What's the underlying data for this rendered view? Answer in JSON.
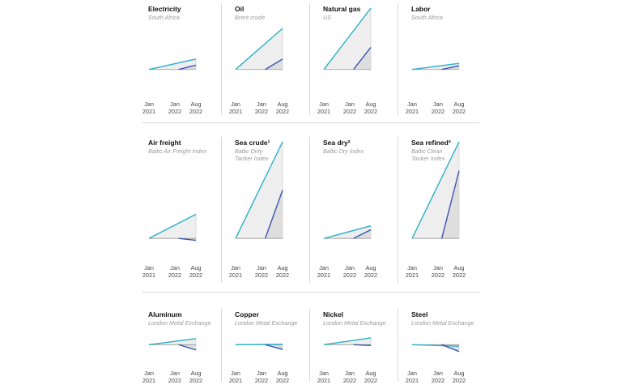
{
  "chart_data": {
    "type": "line",
    "x_ticks": [
      "Jan\n2021",
      "Jan\n2022",
      "Aug\n2022"
    ],
    "x_values": [
      0,
      12,
      19
    ],
    "colors": {
      "teal": "#2ab0c5",
      "blue": "#3a55b4",
      "fill": "#eeeeee",
      "fill_dark": "#dedede",
      "axis": "#999999"
    },
    "panels": [
      {
        "title": "Electricity",
        "subtitle": "South Africa",
        "teal": [
          0,
          0.17
        ],
        "blue": [
          0,
          0.07
        ],
        "ylim": [
          -0.4,
          1
        ]
      },
      {
        "title": "Oil",
        "subtitle": "Brent crude",
        "teal": [
          0,
          0.67
        ],
        "blue": [
          0,
          0.17
        ],
        "ylim": [
          -0.4,
          1
        ]
      },
      {
        "title": "Natural gas",
        "subtitle": "US",
        "teal": [
          0,
          1.0
        ],
        "blue": [
          0,
          0.36
        ],
        "ylim": [
          -0.4,
          1
        ]
      },
      {
        "title": "Labor",
        "subtitle": "South Africa",
        "teal": [
          0,
          0.1
        ],
        "blue": [
          0,
          0.06
        ],
        "ylim": [
          -0.4,
          1
        ]
      },
      {
        "title": "Air freight",
        "subtitle": "Baltic Air Freight Index",
        "teal": [
          0,
          0.25
        ],
        "blue": [
          0,
          -0.02
        ],
        "ylim": [
          -0.2,
          1
        ]
      },
      {
        "title": "Sea crude¹",
        "subtitle": "Baltic Dirty\nTanker Index",
        "teal": [
          0,
          1.0
        ],
        "blue": [
          0,
          0.5
        ],
        "ylim": [
          -0.2,
          1
        ]
      },
      {
        "title": "Sea dry²",
        "subtitle": "Baltic Dry Index",
        "teal": [
          0,
          0.13
        ],
        "blue": [
          0,
          0.09
        ],
        "ylim": [
          -0.2,
          1
        ]
      },
      {
        "title": "Sea refined³",
        "subtitle": "Baltic Clean\nTanker Index",
        "teal": [
          0,
          1.0
        ],
        "blue": [
          0,
          0.7
        ],
        "ylim": [
          -0.2,
          1
        ]
      },
      {
        "title": "Aluminum",
        "subtitle": "London Metal Exchange",
        "teal": [
          0,
          0.32
        ],
        "blue": [
          0,
          -0.28
        ],
        "ylim": [
          -0.8,
          1
        ]
      },
      {
        "title": "Copper",
        "subtitle": "London Metal Exchange",
        "teal": [
          0,
          0.02
        ],
        "blue": [
          0,
          -0.25
        ],
        "ylim": [
          -0.8,
          1
        ]
      },
      {
        "title": "Nickel",
        "subtitle": "London Metal Exchange",
        "teal": [
          0,
          0.36
        ],
        "blue": [
          0,
          -0.04
        ],
        "ylim": [
          -0.8,
          1
        ]
      },
      {
        "title": "Steel",
        "subtitle": "London Metal Exchange",
        "teal": [
          0,
          -0.08
        ],
        "blue": [
          0,
          -0.36
        ],
        "ylim": [
          -0.8,
          1
        ]
      }
    ]
  }
}
